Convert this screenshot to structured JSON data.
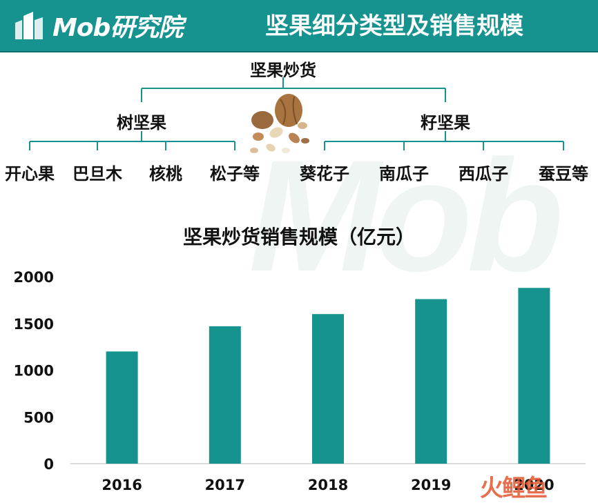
{
  "header": {
    "logo_text": "Mob研究院",
    "title": "坚果细分类型及销售规模",
    "bg_color": "#17938f"
  },
  "watermark_text": "Mob",
  "tree": {
    "root": "坚果炒货",
    "branches": [
      {
        "label": "树坚果",
        "children": [
          "开心果",
          "巴旦木",
          "核桃",
          "松子等"
        ]
      },
      {
        "label": "籽坚果",
        "children": [
          "葵花子",
          "南瓜子",
          "西瓜子",
          "蚕豆等"
        ]
      }
    ],
    "line_color": "#17938f",
    "image": "mixed-nuts-image"
  },
  "chart_data": {
    "type": "bar",
    "title": "坚果炒货销售规模（亿元）",
    "categories": [
      "2016",
      "2017",
      "2018",
      "2019",
      "2020"
    ],
    "values": [
      1200,
      1470,
      1600,
      1760,
      1880
    ],
    "ylim": [
      0,
      2000
    ],
    "yticks": [
      0,
      500,
      1000,
      1500,
      2000
    ],
    "grid": false,
    "bar_color": "#17938f"
  },
  "footer_watermark": "火鲤鱼"
}
